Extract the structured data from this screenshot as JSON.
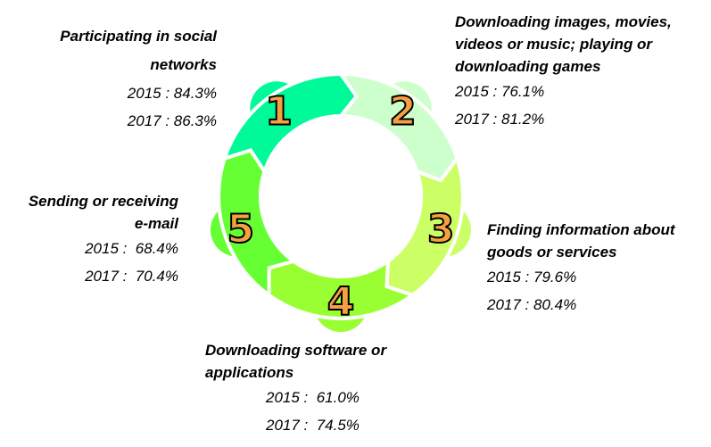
{
  "steps": [
    {
      "number": "1",
      "title_lines": [
        "Participating in social",
        "networks"
      ],
      "v2015": "2015 : 84.3%",
      "v2017": "2017 : 86.3%",
      "color": "#00FA9A"
    },
    {
      "number": "2",
      "title_lines": [
        "Downloading images, movies,",
        "videos or music; playing or",
        "downloading games"
      ],
      "v2015": "2015 : 76.1%",
      "v2017": "2017 : 81.2%",
      "color": "#CCFFCC"
    },
    {
      "number": "3",
      "title_lines": [
        "Finding information about",
        "goods or services"
      ],
      "v2015": "2015 : 79.6%",
      "v2017": "2017 : 80.4%",
      "color": "#CCFF66"
    },
    {
      "number": "4",
      "title_lines": [
        "Downloading software or",
        "applications"
      ],
      "v2015": "2015 :  61.0%",
      "v2017": "2017 :  74.5%",
      "color": "#99FF33"
    },
    {
      "number": "5",
      "title_lines": [
        "Sending or receiving",
        "e-mail"
      ],
      "v2015": "2015 :  68.4%",
      "v2017": "2017 :  70.4%",
      "color": "#66FF33"
    }
  ],
  "number_color": "#F7A043"
}
